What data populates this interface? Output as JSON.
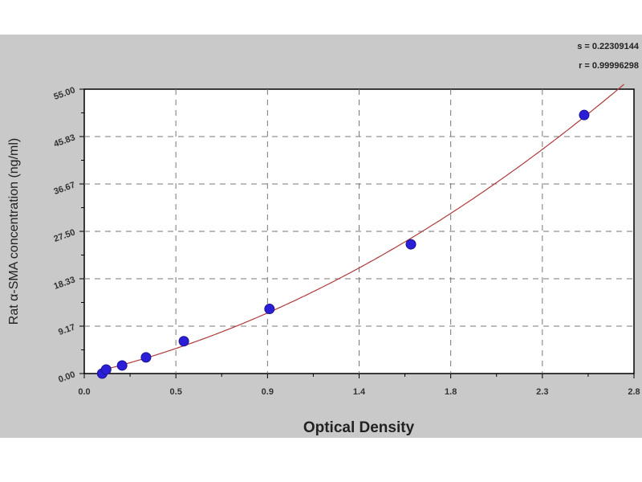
{
  "chart_data": {
    "type": "scatter",
    "xlabel": "Optical Density",
    "ylabel": "Rat α-SMA  concentration (ng/ml)",
    "x_ticks": [
      "0.0",
      "0.5",
      "0.9",
      "1.4",
      "1.8",
      "2.3",
      "2.8"
    ],
    "y_ticks": [
      "0.00",
      "9.17",
      "18.33",
      "27.50",
      "36.67",
      "45.83",
      "55.00"
    ],
    "xlim": [
      0,
      2.76
    ],
    "ylim": [
      0,
      55
    ],
    "grid": true,
    "annotations": [
      "s = 0.22309144",
      "r = 0.99996298"
    ],
    "points": {
      "x": [
        0.09,
        0.11,
        0.19,
        0.31,
        0.5,
        0.93,
        1.64,
        2.51
      ],
      "y": [
        0,
        0.78,
        1.56,
        3.13,
        6.25,
        12.5,
        25,
        50
      ]
    },
    "colors": {
      "points": "#2a1fd6",
      "curve": "#b03a3a",
      "background": "#c9c9c9"
    }
  }
}
